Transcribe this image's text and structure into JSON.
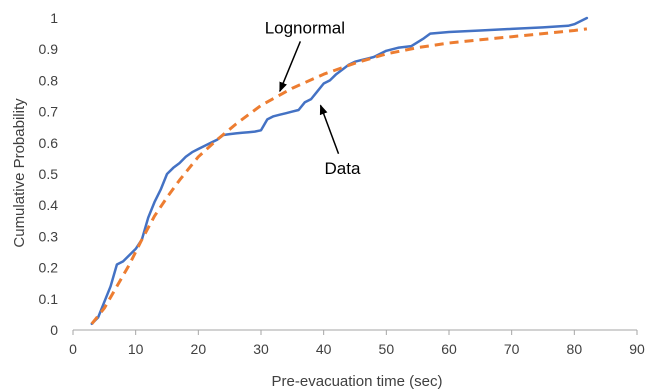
{
  "chart_data": {
    "type": "line",
    "title": "",
    "xlabel": "Pre-evacuation time (sec)",
    "ylabel": "Cumulative Probability",
    "xlim": [
      0,
      90
    ],
    "ylim": [
      0,
      1
    ],
    "x_ticks": [
      0,
      10,
      20,
      30,
      40,
      50,
      60,
      70,
      80,
      90
    ],
    "y_ticks": [
      0,
      0.1,
      0.2,
      0.3,
      0.4,
      0.5,
      0.6,
      0.7,
      0.8,
      0.9,
      1
    ],
    "x_tick_labels": [
      "0",
      "10",
      "20",
      "30",
      "40",
      "50",
      "60",
      "70",
      "80",
      "90"
    ],
    "y_tick_labels": [
      "0",
      "0.1",
      "0.2",
      "0.3",
      "0.4",
      "0.5",
      "0.6",
      "0.7",
      "0.8",
      "0.9",
      "1"
    ],
    "grid": false,
    "series": [
      {
        "name": "Data",
        "color": "#4472C4",
        "style": "solid",
        "x": [
          3,
          4,
          5,
          6,
          7,
          8,
          9,
          10,
          11,
          12,
          13,
          14,
          15,
          16,
          17,
          18,
          19,
          20,
          21,
          22,
          23,
          24,
          25,
          26,
          27,
          28,
          29,
          30,
          31,
          32,
          33,
          34,
          35,
          36,
          37,
          38,
          39,
          40,
          41,
          42,
          43,
          44,
          45,
          46,
          47,
          48,
          50,
          52,
          54,
          56,
          57,
          60,
          65,
          70,
          75,
          79,
          80,
          82
        ],
        "y": [
          0.02,
          0.04,
          0.09,
          0.14,
          0.21,
          0.22,
          0.24,
          0.26,
          0.29,
          0.36,
          0.41,
          0.45,
          0.5,
          0.52,
          0.535,
          0.555,
          0.57,
          0.58,
          0.59,
          0.6,
          0.61,
          0.625,
          0.628,
          0.63,
          0.632,
          0.634,
          0.636,
          0.64,
          0.675,
          0.685,
          0.69,
          0.695,
          0.7,
          0.705,
          0.73,
          0.74,
          0.765,
          0.79,
          0.8,
          0.82,
          0.835,
          0.85,
          0.86,
          0.865,
          0.87,
          0.875,
          0.895,
          0.905,
          0.91,
          0.935,
          0.95,
          0.955,
          0.96,
          0.965,
          0.97,
          0.975,
          0.98,
          1.0
        ]
      },
      {
        "name": "Lognormal",
        "color": "#ED7D31",
        "style": "dashed",
        "x": [
          3,
          5,
          7,
          9,
          11,
          13,
          15,
          17,
          20,
          23,
          26,
          30,
          35,
          40,
          45,
          50,
          55,
          60,
          65,
          70,
          75,
          80,
          82
        ],
        "y": [
          0.02,
          0.07,
          0.14,
          0.21,
          0.29,
          0.365,
          0.425,
          0.48,
          0.555,
          0.61,
          0.66,
          0.72,
          0.775,
          0.82,
          0.855,
          0.885,
          0.905,
          0.92,
          0.93,
          0.94,
          0.95,
          0.96,
          0.965
        ]
      }
    ],
    "annotations": [
      {
        "text": "Lognormal",
        "label_x": 37,
        "label_y": 0.97,
        "arrow_to_x": 33,
        "arrow_to_y": 0.765
      },
      {
        "text": "Data",
        "label_x": 43,
        "label_y": 0.52,
        "arrow_to_x": 39.5,
        "arrow_to_y": 0.72
      }
    ]
  }
}
